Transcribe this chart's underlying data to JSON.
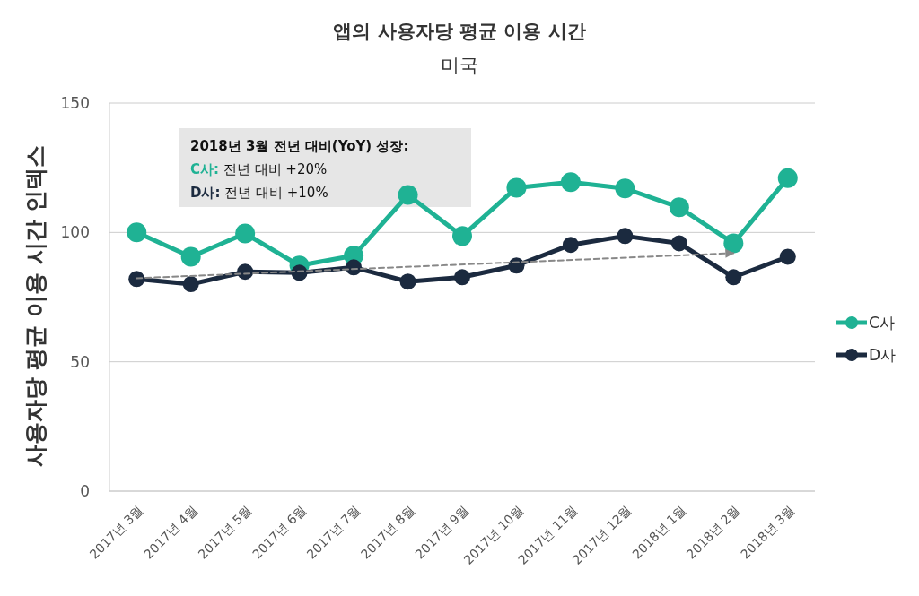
{
  "chart_data": {
    "type": "line",
    "title": "앱의 사용자당 평균 이용 시간",
    "subtitle": "미국",
    "ylabel": "사용자당 평균 이용 시간 인덱스",
    "categories": [
      "2017년 3월",
      "2017년 4월",
      "2017년 5월",
      "2017년 6월",
      "2017년 7월",
      "2017년 8월",
      "2017년 9월",
      "2017년 10월",
      "2017년 11월",
      "2017년 12월",
      "2018년 1월",
      "2018년 2월",
      "2018년 3월"
    ],
    "series": [
      {
        "name": "C사",
        "color": "#1fb294",
        "values": [
          100,
          90.6,
          99.6,
          87.2,
          91,
          114.5,
          98.6,
          117.3,
          119.4,
          117,
          109.7,
          95.8,
          121
        ]
      },
      {
        "name": "D사",
        "color": "#1b2a3f",
        "values": [
          82,
          80,
          84.8,
          84.4,
          86.5,
          81,
          82.7,
          87.2,
          95.2,
          98.6,
          95.8,
          82.7,
          90.6
        ]
      },
      {
        "type": "line",
        "color": "#888888",
        "line_style": "dashed",
        "marker": "none",
        "x": [
          "2017년 3월",
          "2018년 2월"
        ],
        "values": [
          82.3,
          92
        ]
      }
    ],
    "ylim": [
      0,
      150
    ],
    "yticks": [
      0,
      50,
      100,
      150
    ],
    "grid": "y",
    "legend": "right",
    "marker": "circle",
    "line_style": "solid",
    "annotations": [
      "2018년 3월 전년 대비(YoY) 성장:",
      "C사: 전년 대비 +20%",
      "D사: 전년 대비 +10%"
    ]
  }
}
